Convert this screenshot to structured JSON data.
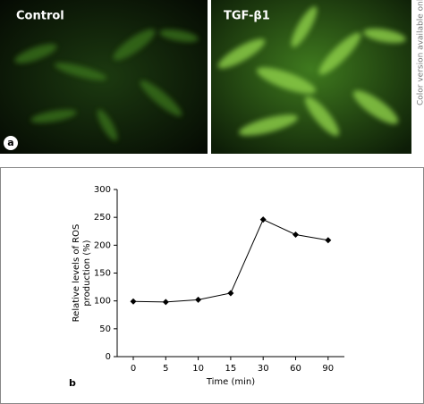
{
  "image_labels": [
    "Control",
    "TGF-β1"
  ],
  "panel_a_label": "a",
  "side_note": "Color version available online",
  "chart_data": {
    "type": "line",
    "panel_label": "b",
    "xlabel": "Time (min)",
    "ylabel": [
      "Relative levels of ROS",
      "production (%)"
    ],
    "categories": [
      "0",
      "5",
      "10",
      "15",
      "30",
      "60",
      "90"
    ],
    "series": [
      {
        "name": "ROS production",
        "color": "#000000",
        "values": [
          99,
          98,
          102,
          114,
          246,
          219,
          209
        ]
      }
    ],
    "ylim": [
      0,
      300
    ],
    "yticks": [
      0,
      50,
      100,
      150,
      200,
      250,
      300
    ],
    "grid": false
  }
}
